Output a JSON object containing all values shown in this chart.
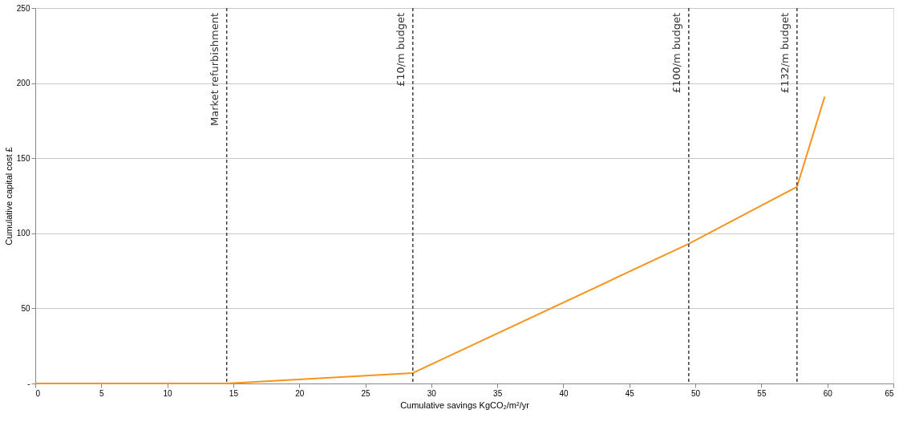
{
  "chart_data": {
    "type": "line",
    "xlabel": "Cumulative savings KgCO₂/m²/yr",
    "ylabel": "Cumulative capital cost £",
    "x": [
      0,
      14.5,
      28.6,
      49.5,
      57.7,
      59.8
    ],
    "series": [
      {
        "color": "#f7941d",
        "values": [
          0,
          0,
          7,
          93,
          131,
          191
        ]
      }
    ],
    "xlim": [
      0,
      65
    ],
    "xticks": [
      0,
      5,
      10,
      15,
      20,
      25,
      30,
      35,
      40,
      45,
      50,
      55,
      60,
      65
    ],
    "ylim": [
      0,
      250
    ],
    "yticks": [
      {
        "value": 0,
        "label": "-"
      },
      50,
      100,
      150,
      200,
      250
    ],
    "grid": "y",
    "marker": "none",
    "line_style": "solid",
    "ref_lines": [
      {
        "axis": "x",
        "value": 14.5,
        "label": "Market refurbishment",
        "color": "#404040",
        "line_style": "dashed"
      },
      {
        "axis": "x",
        "value": 28.6,
        "label": "£10/m  budget",
        "color": "#404040",
        "line_style": "dashed"
      },
      {
        "axis": "x",
        "value": 49.5,
        "label": "£100/m  budget",
        "color": "#404040",
        "line_style": "dashed"
      },
      {
        "axis": "x",
        "value": 57.7,
        "label": "£132/m  budget",
        "color": "#404040",
        "line_style": "dashed"
      }
    ]
  }
}
